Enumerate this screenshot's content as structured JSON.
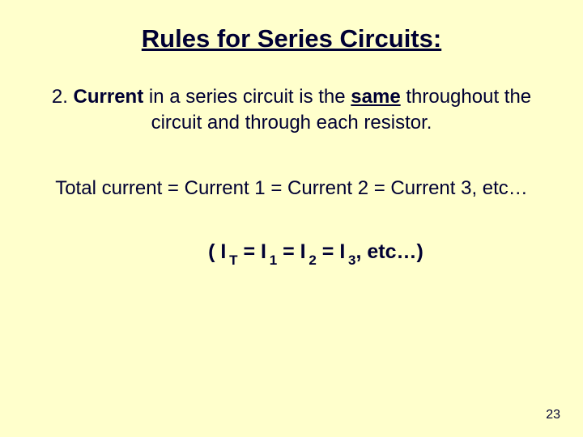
{
  "background_color": "#ffffcc",
  "text_color": "#000033",
  "title": "Rules for Series Circuits:",
  "title_fontsize": 31,
  "rule": {
    "number_label": "2.  ",
    "keyword1": "Current",
    "mid1": " in a series circuit is the ",
    "keyword2": "same",
    "rest": " throughout the circuit and through each resistor.",
    "fontsize": 24
  },
  "equation_words": "Total current  =  Current 1  =  Current 2  =  Current 3,  etc…",
  "symbolic": {
    "open": "( I",
    "sub_T": "T",
    "eq": "  =  I",
    "sub_1": "1",
    "sub_2": "2",
    "sub_3": "3",
    "tail": ",  etc…)",
    "fontsize": 25
  },
  "page_number": "23"
}
